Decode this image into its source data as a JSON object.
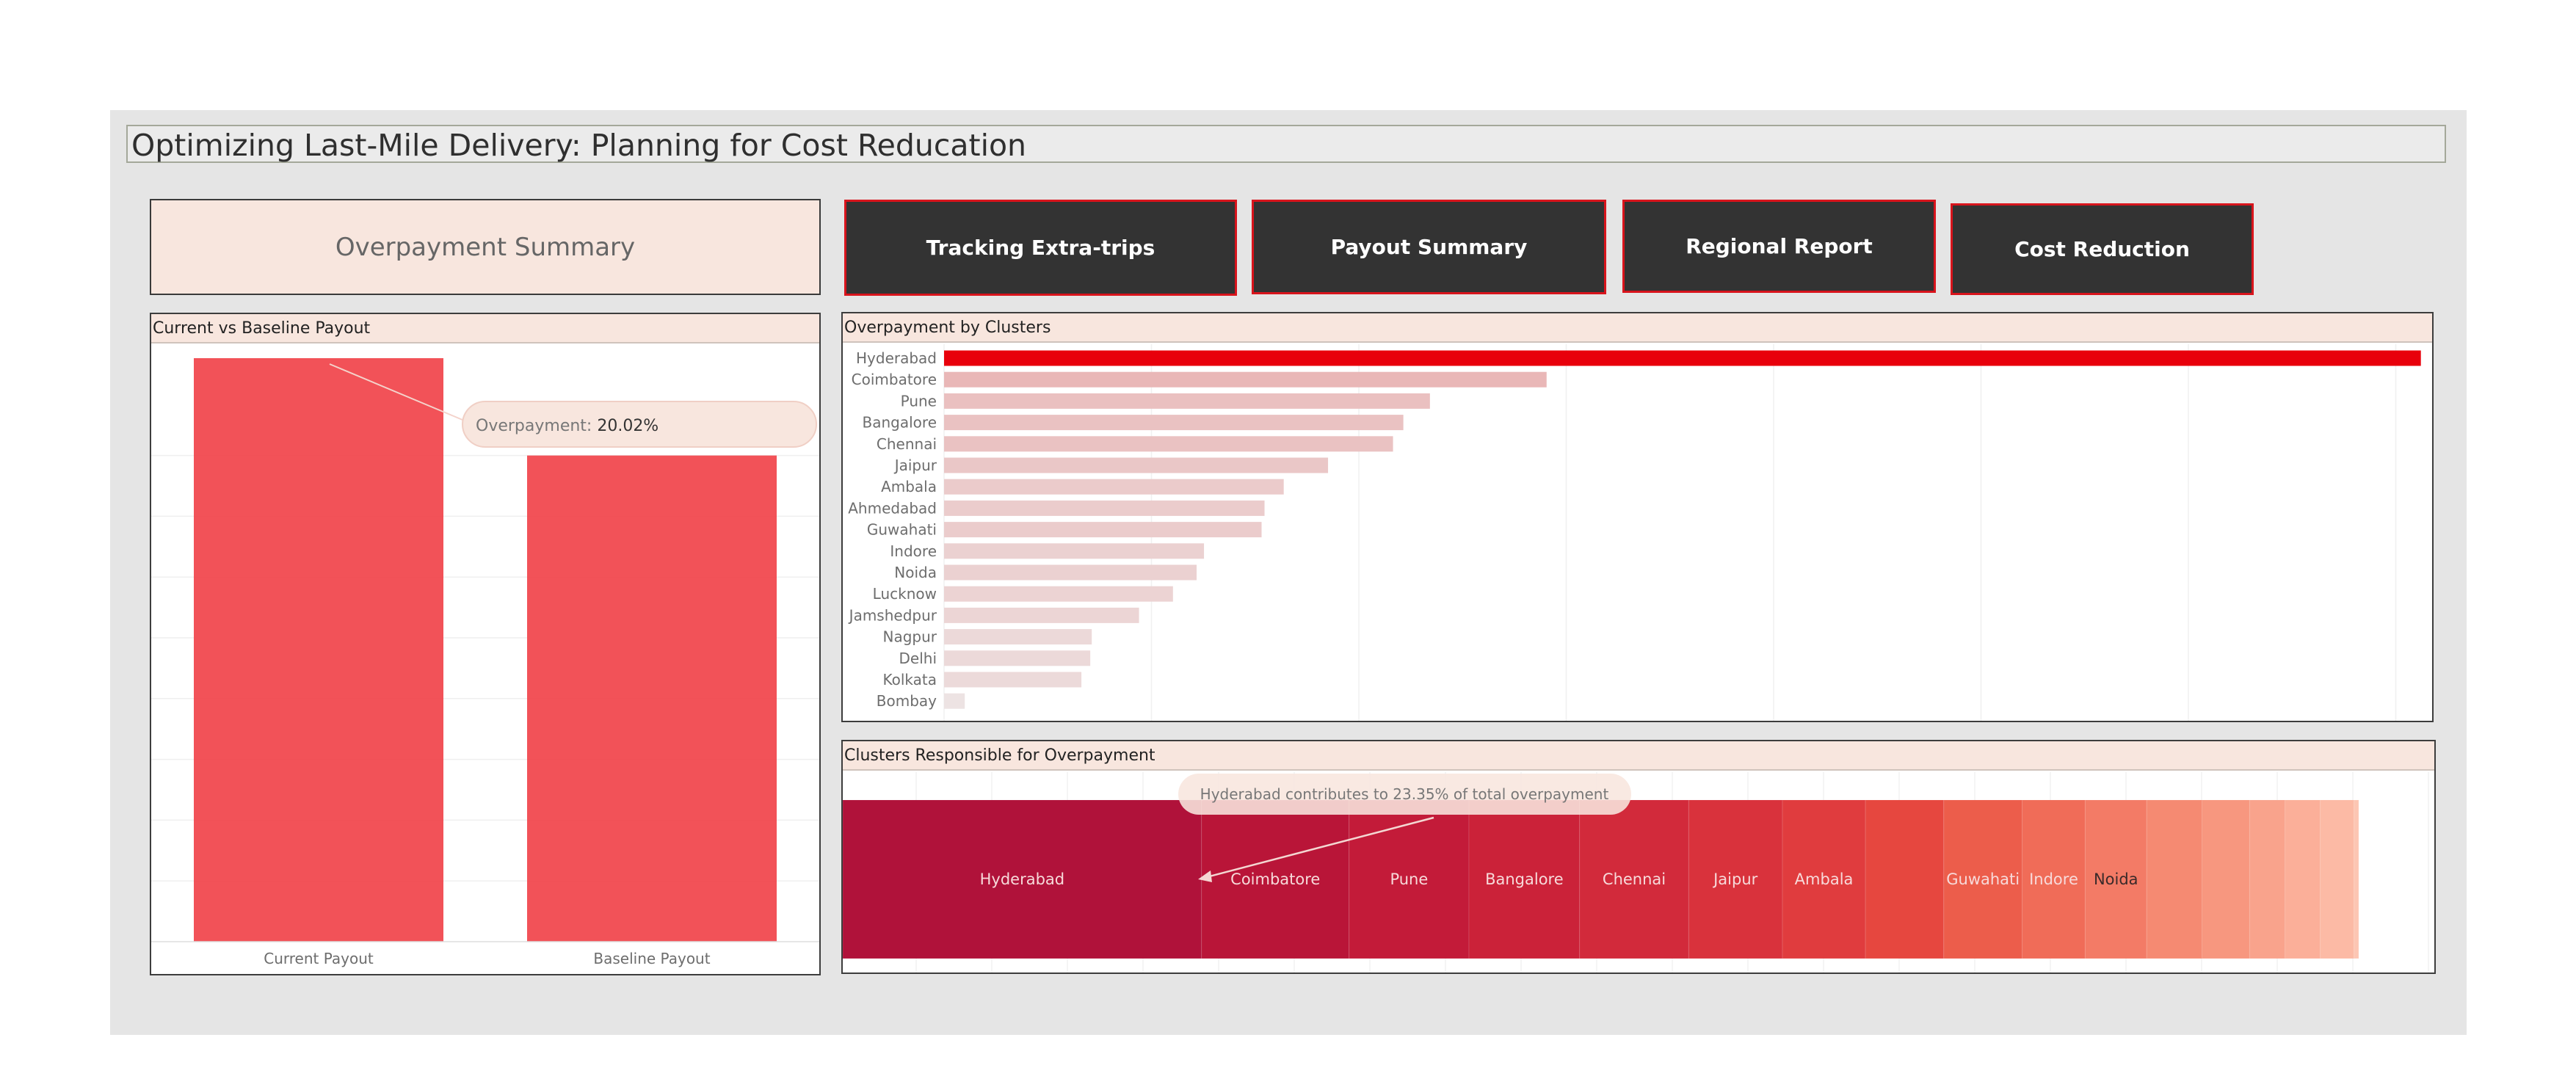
{
  "title": "Optimizing Last-Mile Delivery: Planning for Cost Reducation",
  "summary_button": "Overpayment Summary",
  "nav": [
    {
      "label": "Tracking Extra-trips"
    },
    {
      "label": "Payout Summary"
    },
    {
      "label": "Regional Report"
    },
    {
      "label": "Cost Reduction"
    }
  ],
  "colors": {
    "bar_red": "#f1434a",
    "highlight": "#e8000b",
    "header_bg": "#f8e6de",
    "nav_bg": "#333333",
    "nav_border": "#d8141c"
  },
  "chart_data": [
    {
      "type": "bar",
      "title": "Current vs Baseline Payout",
      "categories": [
        "Current Payout",
        "Baseline Payout"
      ],
      "values": [
        1.2002,
        1.0
      ],
      "ylim": [
        0,
        1.25
      ],
      "grid": true,
      "annotation": {
        "label": "Overpayment:",
        "value": "20.02%"
      }
    },
    {
      "type": "bar",
      "orientation": "horizontal",
      "title": "Overpayment by Clusters",
      "categories": [
        "Hyderabad",
        "Coimbatore",
        "Pune",
        "Bangalore",
        "Chennai",
        "Jaipur",
        "Ambala",
        "Ahmedabad",
        "Guwahati",
        "Indore",
        "Noida",
        "Lucknow",
        "Jamshedpur",
        "Nagpur",
        "Delhi",
        "Kolkata",
        "Bombay"
      ],
      "values": [
        100,
        40.8,
        32.9,
        31.1,
        30.4,
        26.0,
        23.0,
        21.7,
        21.5,
        17.6,
        17.1,
        15.5,
        13.2,
        10.0,
        9.9,
        9.3,
        1.4
      ],
      "xlim": [
        0,
        102.7
      ],
      "grid": true
    },
    {
      "type": "treemap",
      "title": "Clusters Responsible for Overpayment",
      "categories": [
        "Hyderabad",
        "Coimbatore",
        "Pune",
        "Bangalore",
        "Chennai",
        "Jaipur",
        "Ambala",
        "",
        "Guwahati",
        "Indore",
        "Noida",
        "",
        "",
        "",
        "",
        "",
        ""
      ],
      "values": [
        23.35,
        9.6,
        7.8,
        7.2,
        7.1,
        6.1,
        5.4,
        5.1,
        5.1,
        4.1,
        4.0,
        3.6,
        3.1,
        2.3,
        2.3,
        2.2,
        0.3
      ],
      "colors": [
        "#b0123a",
        "#b91538",
        "#c31b39",
        "#cb2239",
        "#d22a3b",
        "#d9323c",
        "#e03c3e",
        "#e6473f",
        "#ec5d4b",
        "#f06c58",
        "#f37b66",
        "#f58a72",
        "#f7977f",
        "#f9a38c",
        "#fbaf99",
        "#fcbaa5",
        "#fdc6b3"
      ],
      "annotation": "Hyderabad contributes to 23.35% of total overpayment"
    }
  ]
}
